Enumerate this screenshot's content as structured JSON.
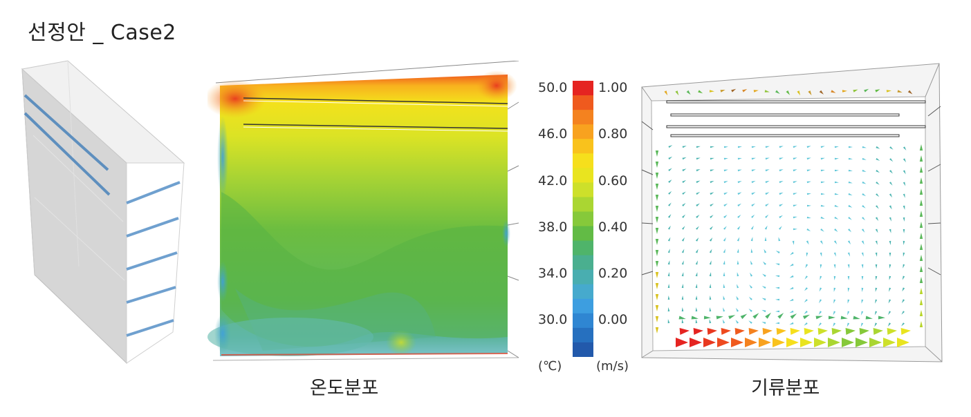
{
  "title": "선정안 _ Case2",
  "captions": {
    "temperature": "온도분포",
    "airflow": "기류분포"
  },
  "legend": {
    "temp_ticks": [
      "50.0",
      "46.0",
      "42.0",
      "38.0",
      "34.0",
      "30.0"
    ],
    "vel_ticks": [
      "1.00",
      "0.80",
      "0.60",
      "0.40",
      "0.20",
      "0.00"
    ],
    "temp_unit": "(℃)",
    "vel_unit": "(m/s)",
    "colors": [
      "#e52421",
      "#ef5a1e",
      "#f4821f",
      "#f8a21f",
      "#f9c21c",
      "#f6df1c",
      "#e9e41f",
      "#cde02a",
      "#aad632",
      "#86c93a",
      "#62bb45",
      "#4fb46a",
      "#4aaf8f",
      "#49aeb0",
      "#46aacd",
      "#3d9ee0",
      "#2f86d2",
      "#2670bf",
      "#2259ab"
    ]
  }
}
